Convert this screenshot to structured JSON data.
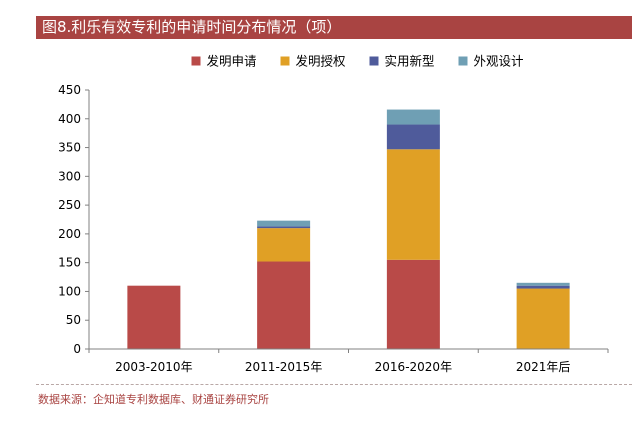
{
  "title": "图8.利乐有效专利的申请时间分布情况（项）",
  "source": "数据来源：企知道专利数据库、财通证券研究所",
  "chart_data": {
    "type": "bar",
    "stacked": true,
    "categories": [
      "2003-2010年",
      "2011-2015年",
      "2016-2020年",
      "2021年后"
    ],
    "series": [
      {
        "name": "发明申请",
        "color": "#b94a48",
        "values": [
          110,
          152,
          155,
          0
        ]
      },
      {
        "name": "发明授权",
        "color": "#e0a025",
        "values": [
          0,
          58,
          192,
          105
        ]
      },
      {
        "name": "实用新型",
        "color": "#4f5b9b",
        "values": [
          0,
          3,
          43,
          5
        ]
      },
      {
        "name": "外观设计",
        "color": "#6f9fb4",
        "values": [
          0,
          10,
          26,
          5
        ]
      }
    ],
    "ylim": [
      0,
      450
    ],
    "yticks": [
      0,
      50,
      100,
      150,
      200,
      250,
      300,
      350,
      400,
      450
    ],
    "legend_position": "top-center",
    "grid": false
  }
}
